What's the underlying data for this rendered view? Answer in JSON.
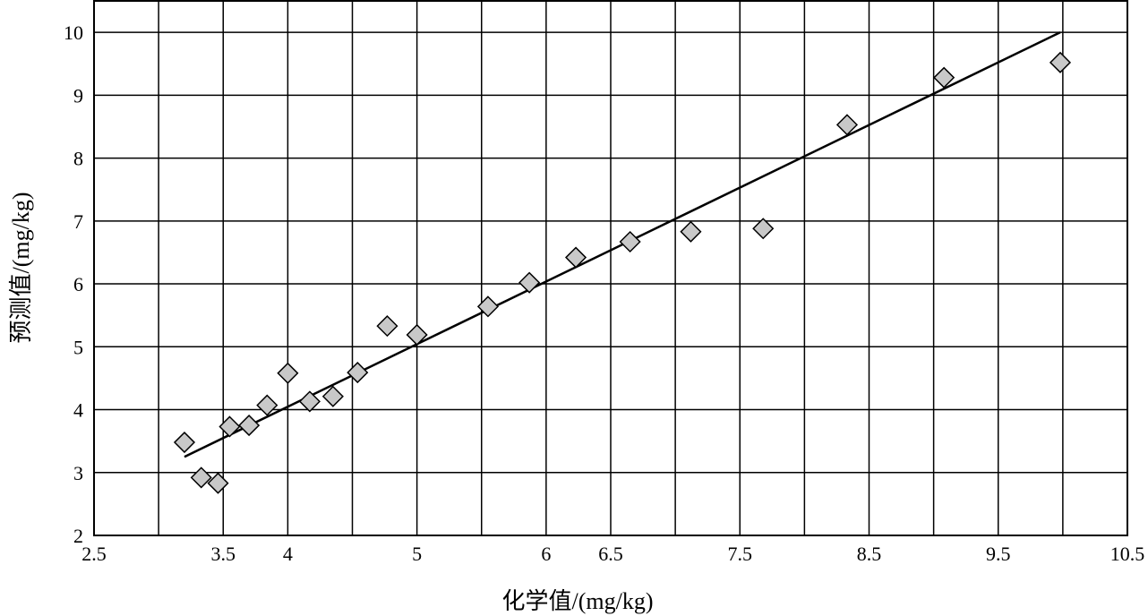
{
  "chart_data": {
    "type": "scatter",
    "title": "",
    "xlabel": "化学值/(mg/kg)",
    "ylabel": "预测值/(mg/kg)",
    "xlim": [
      2.5,
      10.5
    ],
    "ylim": [
      2,
      10.5
    ],
    "grid": true,
    "x_tick_labels": [
      "2.5",
      "3.5",
      "4",
      "5",
      "6",
      "6.5",
      "7.5",
      "8.5",
      "9.5",
      "10.5"
    ],
    "y_tick_labels": [
      "2",
      "3",
      "4",
      "5",
      "6",
      "7",
      "8",
      "9",
      "10"
    ],
    "series": [
      {
        "marker": "diamond",
        "color": "#c8c8c8",
        "points": [
          {
            "x": 3.2,
            "y": 3.48
          },
          {
            "x": 3.33,
            "y": 2.92
          },
          {
            "x": 3.46,
            "y": 2.83
          },
          {
            "x": 3.55,
            "y": 3.73
          },
          {
            "x": 3.7,
            "y": 3.75
          },
          {
            "x": 3.84,
            "y": 4.07
          },
          {
            "x": 4.0,
            "y": 4.58
          },
          {
            "x": 4.17,
            "y": 4.13
          },
          {
            "x": 4.35,
            "y": 4.21
          },
          {
            "x": 4.54,
            "y": 4.59
          },
          {
            "x": 4.77,
            "y": 5.33
          },
          {
            "x": 5.0,
            "y": 5.19
          },
          {
            "x": 5.55,
            "y": 5.64
          },
          {
            "x": 5.87,
            "y": 6.02
          },
          {
            "x": 6.23,
            "y": 6.42
          },
          {
            "x": 6.65,
            "y": 6.67
          },
          {
            "x": 7.12,
            "y": 6.83
          },
          {
            "x": 7.68,
            "y": 6.88
          },
          {
            "x": 8.33,
            "y": 8.53
          },
          {
            "x": 9.08,
            "y": 9.28
          },
          {
            "x": 9.98,
            "y": 9.52
          }
        ]
      }
    ],
    "trendline": {
      "from": [
        3.2,
        3.25
      ],
      "to": [
        9.98,
        10.0
      ],
      "color": "#000000"
    }
  }
}
